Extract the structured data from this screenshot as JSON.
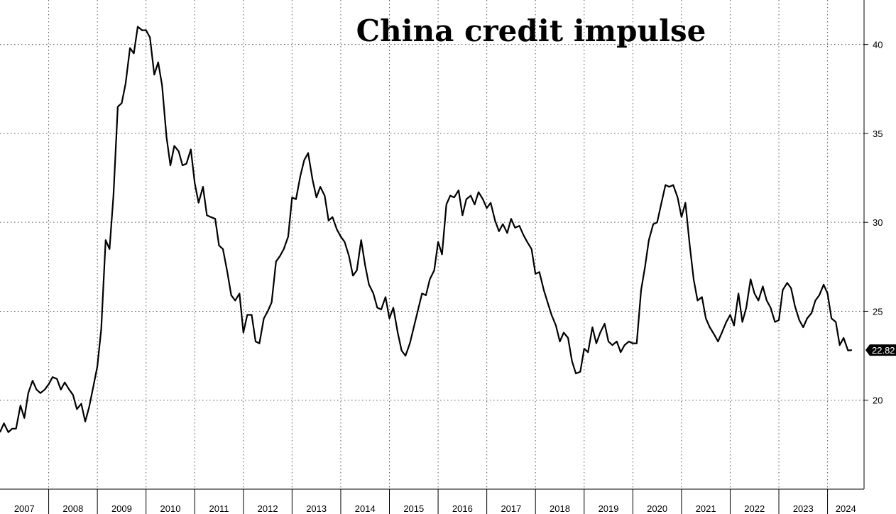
{
  "chart_data": {
    "type": "line",
    "title": "China credit impulse",
    "xlabel": "",
    "ylabel": "",
    "ylim": [
      15,
      42.5
    ],
    "xlim": [
      2007.0,
      2024.75
    ],
    "y_ticks": [
      20,
      25,
      30,
      35,
      40
    ],
    "x_ticks": [
      "2007",
      "2008",
      "2009",
      "2010",
      "2011",
      "2012",
      "2013",
      "2014",
      "2015",
      "2016",
      "2017",
      "2018",
      "2019",
      "2020",
      "2021",
      "2022",
      "2023",
      "2024"
    ],
    "grid": true,
    "legend": "none",
    "last_value_label": "22.82",
    "line_color": "#000000",
    "series": [
      {
        "x": [
          2007.0,
          2007.08,
          2007.17,
          2007.25,
          2007.33,
          2007.42,
          2007.5,
          2007.58,
          2007.67,
          2007.75,
          2007.83,
          2007.92,
          2008.0,
          2008.08,
          2008.17,
          2008.25,
          2008.33,
          2008.42,
          2008.5,
          2008.58,
          2008.67,
          2008.75,
          2008.83,
          2008.92,
          2009.0,
          2009.08,
          2009.17,
          2009.25,
          2009.33,
          2009.42,
          2009.5,
          2009.58,
          2009.67,
          2009.75,
          2009.83,
          2009.92,
          2010.0,
          2010.08,
          2010.17,
          2010.25,
          2010.33,
          2010.42,
          2010.5,
          2010.58,
          2010.67,
          2010.75,
          2010.83,
          2010.92,
          2011.0,
          2011.08,
          2011.17,
          2011.25,
          2011.33,
          2011.42,
          2011.5,
          2011.58,
          2011.67,
          2011.75,
          2011.83,
          2011.92,
          2012.0,
          2012.08,
          2012.17,
          2012.25,
          2012.33,
          2012.42,
          2012.5,
          2012.58,
          2012.67,
          2012.75,
          2012.83,
          2012.92,
          2013.0,
          2013.08,
          2013.17,
          2013.25,
          2013.33,
          2013.42,
          2013.5,
          2013.58,
          2013.67,
          2013.75,
          2013.83,
          2013.92,
          2014.0,
          2014.08,
          2014.17,
          2014.25,
          2014.33,
          2014.42,
          2014.5,
          2014.58,
          2014.67,
          2014.75,
          2014.83,
          2014.92,
          2015.0,
          2015.08,
          2015.17,
          2015.25,
          2015.33,
          2015.42,
          2015.5,
          2015.58,
          2015.67,
          2015.75,
          2015.83,
          2015.92,
          2016.0,
          2016.08,
          2016.17,
          2016.25,
          2016.33,
          2016.42,
          2016.5,
          2016.58,
          2016.67,
          2016.75,
          2016.83,
          2016.92,
          2017.0,
          2017.08,
          2017.17,
          2017.25,
          2017.33,
          2017.42,
          2017.5,
          2017.58,
          2017.67,
          2017.75,
          2017.83,
          2017.92,
          2018.0,
          2018.08,
          2018.17,
          2018.25,
          2018.33,
          2018.42,
          2018.5,
          2018.58,
          2018.67,
          2018.75,
          2018.83,
          2018.92,
          2019.0,
          2019.08,
          2019.17,
          2019.25,
          2019.33,
          2019.42,
          2019.5,
          2019.58,
          2019.67,
          2019.75,
          2019.83,
          2019.92,
          2020.0,
          2020.08,
          2020.17,
          2020.25,
          2020.33,
          2020.42,
          2020.5,
          2020.58,
          2020.67,
          2020.75,
          2020.83,
          2020.92,
          2021.0,
          2021.08,
          2021.17,
          2021.25,
          2021.33,
          2021.42,
          2021.5,
          2021.58,
          2021.67,
          2021.75,
          2021.83,
          2021.92,
          2022.0,
          2022.08,
          2022.17,
          2022.25,
          2022.33,
          2022.42,
          2022.5,
          2022.58,
          2022.67,
          2022.75,
          2022.83,
          2022.92,
          2023.0,
          2023.08,
          2023.17,
          2023.25,
          2023.33,
          2023.42,
          2023.5,
          2023.58,
          2023.67,
          2023.75,
          2023.83,
          2023.92,
          2024.0,
          2024.08,
          2024.17,
          2024.25,
          2024.33,
          2024.42,
          2024.5
        ],
        "values": [
          18.2,
          18.7,
          18.2,
          18.4,
          18.4,
          19.7,
          19.0,
          20.4,
          21.1,
          20.6,
          20.4,
          20.6,
          20.9,
          21.3,
          21.2,
          20.6,
          21.0,
          20.6,
          20.3,
          19.5,
          19.8,
          18.8,
          19.6,
          20.8,
          21.9,
          24.0,
          29.0,
          28.5,
          31.5,
          36.5,
          36.7,
          37.8,
          39.8,
          39.5,
          41.0,
          40.8,
          40.8,
          40.4,
          38.3,
          39.0,
          37.7,
          34.8,
          33.2,
          34.3,
          34.0,
          33.2,
          33.3,
          34.1,
          32.2,
          31.1,
          32.0,
          30.4,
          30.3,
          30.2,
          28.7,
          28.5,
          27.2,
          25.9,
          25.6,
          26.0,
          23.8,
          24.8,
          24.8,
          23.3,
          23.2,
          24.6,
          25.0,
          25.5,
          27.8,
          28.1,
          28.5,
          29.2,
          31.4,
          31.3,
          32.6,
          33.5,
          33.9,
          32.4,
          31.4,
          32.0,
          31.5,
          30.1,
          30.3,
          29.6,
          29.2,
          28.9,
          28.1,
          27.0,
          27.3,
          29.0,
          27.6,
          26.5,
          26.0,
          25.2,
          25.1,
          25.8,
          24.6,
          25.2,
          23.8,
          22.8,
          22.5,
          23.2,
          24.1,
          25.0,
          26.0,
          25.9,
          26.8,
          27.3,
          28.9,
          28.2,
          31.0,
          31.5,
          31.4,
          31.8,
          30.4,
          31.3,
          31.5,
          31.0,
          31.7,
          31.3,
          30.8,
          31.1,
          30.1,
          29.5,
          29.9,
          29.4,
          30.2,
          29.7,
          29.8,
          29.3,
          28.9,
          28.5,
          27.1,
          27.2,
          26.2,
          25.5,
          24.8,
          24.2,
          23.3,
          23.8,
          23.5,
          22.2,
          21.5,
          21.6,
          22.9,
          22.7,
          24.1,
          23.2,
          23.8,
          24.3,
          23.3,
          23.1,
          23.3,
          22.7,
          23.1,
          23.3,
          23.2,
          23.2,
          26.2,
          27.5,
          29.0,
          29.9,
          30.0,
          31.0,
          32.1,
          32.0,
          32.1,
          31.4,
          30.3,
          31.1,
          28.7,
          26.8,
          25.6,
          25.8,
          24.6,
          24.1,
          23.7,
          23.3,
          23.8,
          24.4,
          24.8,
          24.2,
          26.0,
          24.4,
          25.2,
          26.8,
          26.0,
          25.6,
          26.4,
          25.6,
          25.2,
          24.4,
          24.5,
          26.2,
          26.6,
          26.3,
          25.3,
          24.5,
          24.1,
          24.6,
          24.9,
          25.6,
          25.9,
          26.5,
          26.0,
          24.6,
          24.4,
          23.1,
          23.5,
          22.8,
          22.82
        ]
      }
    ]
  }
}
